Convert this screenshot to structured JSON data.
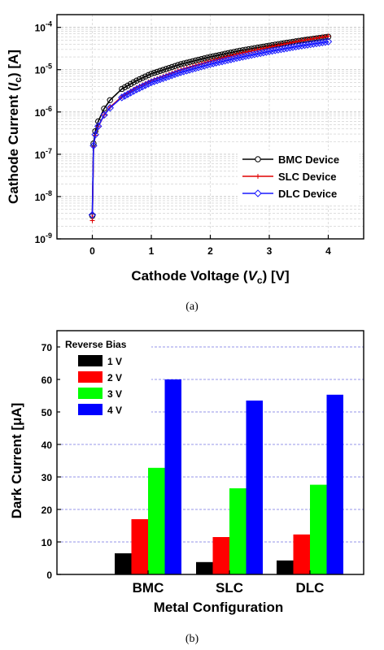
{
  "chart_data": [
    {
      "id": "a",
      "type": "scatter",
      "caption": "(a)",
      "ylabel_parts": [
        "Cathode Current (",
        "I",
        "c",
        ") [A]"
      ],
      "xlabel_parts": [
        "Cathode Voltage (",
        "V",
        "c",
        ") [V]"
      ],
      "xlim": [
        -0.6,
        4.6
      ],
      "ylim": [
        1e-09,
        0.0002
      ],
      "yscale": "log",
      "xticks": [
        0,
        1,
        2,
        3,
        4
      ],
      "xtick_labels": [
        "0",
        "1",
        "2",
        "3",
        "4"
      ],
      "yticks_exp": [
        -9,
        -8,
        -7,
        -6,
        -5,
        -4
      ],
      "ytick_base": "10",
      "grid": true,
      "legend_position": "lower-right",
      "series": [
        {
          "name": "BMC Device",
          "color": "#000000",
          "marker": "circle",
          "x": [
            0,
            0.02,
            0.05,
            0.1,
            0.2,
            0.3,
            0.5,
            0.75,
            1,
            1.5,
            2,
            2.5,
            3,
            3.5,
            4
          ],
          "y": [
            3.5e-09,
            1.8e-07,
            3.5e-07,
            6e-07,
            1.2e-06,
            1.9e-06,
            3.5e-06,
            5.5e-06,
            8e-06,
            1.35e-05,
            2e-05,
            2.8e-05,
            3.7e-05,
            4.8e-05,
            6e-05
          ]
        },
        {
          "name": "SLC Device",
          "color": "#e00000",
          "marker": "plus",
          "x": [
            0,
            0.02,
            0.05,
            0.1,
            0.2,
            0.3,
            0.5,
            0.75,
            1,
            1.5,
            2,
            2.5,
            3,
            3.5,
            4
          ],
          "y": [
            2.7e-09,
            1.5e-07,
            2.8e-07,
            4.5e-07,
            8.5e-07,
            1.3e-06,
            2.3e-06,
            3.8e-06,
            5.5e-06,
            1e-05,
            1.6e-05,
            2.4e-05,
            3.4e-05,
            4.7e-05,
            6.2e-05
          ]
        },
        {
          "name": "DLC Device",
          "color": "#1818ff",
          "marker": "diamond",
          "x": [
            0,
            0.02,
            0.05,
            0.1,
            0.2,
            0.3,
            0.5,
            0.75,
            1,
            1.5,
            2,
            2.5,
            3,
            3.5,
            4
          ],
          "y": [
            3.7e-09,
            1.6e-07,
            2.9e-07,
            4.6e-07,
            8.5e-07,
            1.25e-06,
            2.2e-06,
            3.4e-06,
            5e-06,
            8.7e-06,
            1.35e-05,
            1.95e-05,
            2.7e-05,
            3.6e-05,
            4.6e-05
          ]
        }
      ]
    },
    {
      "id": "b",
      "type": "bar",
      "caption": "(b)",
      "ylabel_parts": [
        "Dark Current [",
        "μ",
        "A]"
      ],
      "xlabel": "Metal Configuration",
      "categories": [
        "BMC",
        "SLC",
        "DLC"
      ],
      "ylim": [
        0,
        75
      ],
      "yticks": [
        0,
        10,
        20,
        30,
        40,
        50,
        60,
        70
      ],
      "grid": true,
      "legend_title": "Reverse Bias",
      "legend_position": "top-left",
      "series": [
        {
          "name": "1 V",
          "color": "#000000",
          "values": [
            6.5,
            3.8,
            4.3
          ]
        },
        {
          "name": "2 V",
          "color": "#ff0000",
          "values": [
            17,
            11.5,
            12.3
          ]
        },
        {
          "name": "3 V",
          "color": "#00ff00",
          "values": [
            32.8,
            26.5,
            27.6
          ]
        },
        {
          "name": "4 V",
          "color": "#0000ff",
          "values": [
            60,
            53.5,
            55.3
          ]
        }
      ]
    }
  ]
}
